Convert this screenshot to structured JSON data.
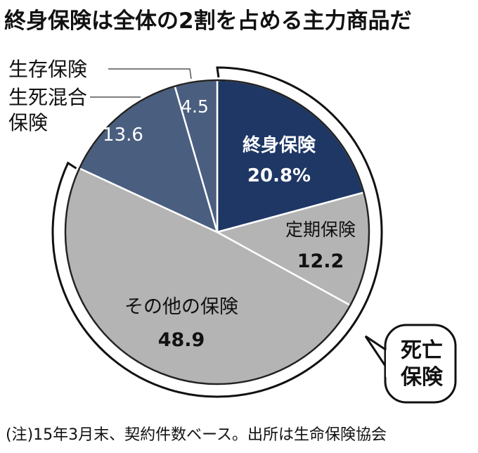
{
  "title": "終身保険は全体の2割を占める主力商品だ",
  "note": "(注)15年3月末、契約件数ベース。出所は生命保険協会",
  "group_label_lines": [
    "死亡",
    "保険"
  ],
  "colors": {
    "dark_navy": "#1e3765",
    "slate": "#4a5e80",
    "gray": "#b4b4b4",
    "border": "#ffffff",
    "text_dark": "#111111",
    "text_light": "#ffffff"
  },
  "chart_data": {
    "type": "pie",
    "unit": "%",
    "title": "終身保険は全体の2割を占める主力商品だ",
    "slices": [
      {
        "name": "終身保険",
        "value": 20.8,
        "value_label": "20.8%",
        "color": "#1e3765",
        "text_color": "#ffffff"
      },
      {
        "name": "定期保険",
        "value": 12.2,
        "value_label": "12.2",
        "color": "#b4b4b4",
        "text_color": "#111111"
      },
      {
        "name": "その他の保険",
        "value": 48.9,
        "value_label": "48.9",
        "color": "#b4b4b4",
        "text_color": "#111111"
      },
      {
        "name": "生死混合保険",
        "value": 13.6,
        "value_label": "13.6",
        "color": "#4a5e80",
        "text_color": "#ffffff"
      },
      {
        "name": "生存保険",
        "value": 4.5,
        "value_label": "4.5",
        "color": "#4a5e80",
        "text_color": "#ffffff"
      }
    ],
    "group": {
      "name": "死亡保険",
      "members": [
        "終身保険",
        "定期保険",
        "その他の保険"
      ]
    }
  }
}
